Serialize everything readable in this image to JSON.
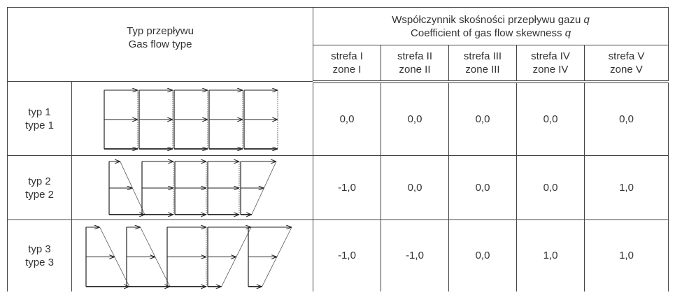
{
  "header": {
    "flow_type": {
      "pl": "Typ przepływu",
      "en": "Gas flow type"
    },
    "coefficient": {
      "pl": "Współczynnik skośności przepływu gazu",
      "en": "Coefficient of gas flow skewness",
      "symbol": "q"
    },
    "zones": [
      {
        "pl": "strefa I",
        "en": "zone I"
      },
      {
        "pl": "strefa II",
        "en": "zone II"
      },
      {
        "pl": "strefa III",
        "en": "zone III"
      },
      {
        "pl": "strefa IV",
        "en": "zone IV"
      },
      {
        "pl": "strefa V",
        "en": "zone V"
      }
    ]
  },
  "rows": [
    {
      "pl": "typ 1",
      "en": "type 1",
      "values": [
        "0,0",
        "0,0",
        "0,0",
        "0,0",
        "0,0"
      ]
    },
    {
      "pl": "typ 2",
      "en": "type 2",
      "values": [
        "-1,0",
        "0,0",
        "0,0",
        "0,0",
        "1,0"
      ]
    },
    {
      "pl": "typ 3",
      "en": "type 3",
      "values": [
        "-1,0",
        "-1,0",
        "0,0",
        "1,0",
        "1,0"
      ]
    }
  ]
}
